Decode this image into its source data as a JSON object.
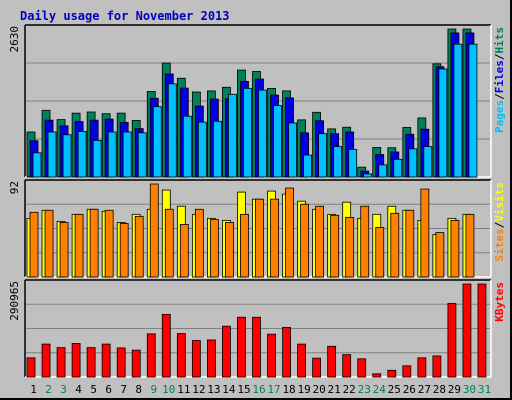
{
  "chart_data": {
    "type": "bar",
    "title": "Daily usage for November 2013",
    "categories": [
      "1",
      "2",
      "3",
      "4",
      "5",
      "6",
      "7",
      "8",
      "9",
      "10",
      "11",
      "12",
      "13",
      "14",
      "15",
      "16",
      "17",
      "18",
      "19",
      "20",
      "21",
      "22",
      "23",
      "24",
      "25",
      "26",
      "27",
      "28",
      "29",
      "30",
      "31"
    ],
    "weekend_days": [
      "2",
      "3",
      "9",
      "10",
      "16",
      "17",
      "23",
      "24",
      "30",
      "31"
    ],
    "panels": [
      {
        "id": "hits",
        "max_label": "2630",
        "ylim": [
          0,
          2630
        ],
        "legend": [
          "Pages",
          "/",
          "Files",
          "/",
          "Hits"
        ],
        "legend_colors": [
          "#00c0ff",
          "#000000",
          "#0000e0",
          "#000000",
          "#00805c"
        ],
        "series": [
          {
            "name": "Hits",
            "color": "#00805c",
            "values": [
              800,
              1185,
              1020,
              1135,
              1155,
              1125,
              1135,
              1005,
              1520,
              2025,
              1755,
              1510,
              1530,
              1595,
              1900,
              1875,
              1575,
              1530,
              1015,
              1150,
              855,
              885,
              175,
              525,
              520,
              880,
              1050,
              2010,
              2630,
              2630,
              0
            ]
          },
          {
            "name": "Files",
            "color": "#0000e0",
            "values": [
              645,
              1010,
              910,
              985,
              1010,
              1030,
              970,
              860,
              1400,
              1830,
              1580,
              1260,
              1385,
              1390,
              1700,
              1740,
              1455,
              1405,
              785,
              1000,
              770,
              800,
              105,
              400,
              445,
              760,
              850,
              1960,
              2560,
              2560,
              0
            ]
          },
          {
            "name": "Pages",
            "color": "#00c0ff",
            "values": [
              430,
              800,
              750,
              810,
              650,
              800,
              800,
              785,
              1250,
              1655,
              1080,
              975,
              990,
              1470,
              1575,
              1545,
              1270,
              960,
              390,
              770,
              540,
              490,
              55,
              215,
              315,
              500,
              540,
              1920,
              2360,
              2360,
              0
            ]
          }
        ]
      },
      {
        "id": "visits",
        "max_label": "92",
        "ylim": [
          0,
          92
        ],
        "legend": [
          "Sites",
          "/",
          "Visits"
        ],
        "legend_colors": [
          "#ff8000",
          "#000000",
          "#ffff00"
        ],
        "series": [
          {
            "name": "Visits",
            "color": "#ffff00",
            "values": [
              58,
              66,
              55,
              62,
              67,
              65,
              54,
              62,
              67,
              86,
              70,
              62,
              58,
              56,
              84,
              77,
              85,
              82,
              75,
              67,
              62,
              74,
              58,
              62,
              70,
              66,
              56,
              42,
              58,
              62,
              0
            ]
          },
          {
            "name": "Sites",
            "color": "#ff8000",
            "values": [
              64,
              66,
              54,
              62,
              67,
              66,
              53,
              60,
              92,
              67,
              52,
              67,
              57,
              54,
              62,
              77,
              77,
              88,
              72,
              70,
              61,
              59,
              70,
              49,
              63,
              66,
              87,
              44,
              56,
              62,
              0
            ]
          }
        ]
      },
      {
        "id": "kbytes",
        "max_label": "290965",
        "ylim": [
          0,
          290965
        ],
        "legend": [
          "KBytes"
        ],
        "legend_colors": [
          "#ff0000"
        ],
        "series": [
          {
            "name": "KBytes",
            "color": "#ff0000",
            "values": [
              60000,
              103000,
              92000,
              105000,
              92000,
              103000,
              91000,
              84000,
              135000,
              196000,
              136000,
              114000,
              116000,
              159000,
              187000,
              187000,
              134000,
              155000,
              103000,
              59000,
              96000,
              70000,
              57000,
              10000,
              21000,
              35000,
              60000,
              66000,
              230000,
              290965,
              290965
            ]
          }
        ]
      }
    ]
  }
}
